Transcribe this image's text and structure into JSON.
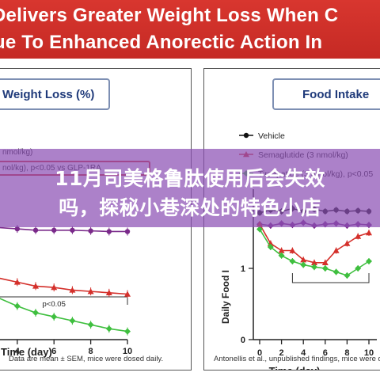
{
  "banner": {
    "line1": "Delivers Greater Weight Loss When C",
    "line2": "ue To Enhanced Anorectic Action In"
  },
  "overlay": {
    "line1": "11月司美格鲁肽使用后会失效",
    "line2": "吗，探秘小巷深处的特色小店"
  },
  "colors": {
    "banner_red": "#d32f2a",
    "vehicle": "#111111",
    "semaglutide": "#d4302b",
    "glp_series": "#7a2a8a",
    "tirzepatide": "#3fbf3f",
    "title_text": "#1f3a7a"
  },
  "chart_data": [
    {
      "type": "line",
      "title": "Weight Loss (%)",
      "xlabel": "Time (day)",
      "ylabel": "",
      "xlim": [
        0,
        10
      ],
      "xticks": [
        "4",
        "6",
        "8",
        "10"
      ],
      "legend": {
        "placement": "top",
        "entries": [
          "nmol/kg)",
          "nol/kg), p<0.05 vs GLP-1RA"
        ]
      },
      "annotation": "p<0.05",
      "footnote": "Data are mean ± SEM, mice were dosed daily.",
      "series": [
        {
          "color": "#7a2a8a",
          "x": [
            0,
            1,
            2,
            3,
            4,
            5,
            6,
            7,
            8,
            9,
            10
          ],
          "values": [
            -6.5,
            -7.2,
            -7.5,
            -7.7,
            -7.8,
            -7.9,
            -7.9,
            -7.9,
            -7.95,
            -8.0,
            -8.0
          ]
        },
        {
          "color": "#d4302b",
          "x": [
            0,
            1,
            2,
            3,
            4,
            5,
            6,
            7,
            8,
            9,
            10
          ],
          "values": [
            -10.0,
            -10.6,
            -11.1,
            -11.5,
            -11.8,
            -12.1,
            -12.2,
            -12.4,
            -12.5,
            -12.6,
            -12.7
          ]
        },
        {
          "color": "#3fbf3f",
          "x": [
            0,
            1,
            2,
            3,
            4,
            5,
            6,
            7,
            8,
            9,
            10
          ],
          "values": [
            -11.0,
            -11.8,
            -12.4,
            -13.0,
            -13.6,
            -14.1,
            -14.4,
            -14.7,
            -15.0,
            -15.3,
            -15.5
          ]
        }
      ]
    },
    {
      "type": "line",
      "title": "Food Intake",
      "xlabel": "Time (day)",
      "ylabel": "Daily Food I",
      "xlim": [
        0,
        10
      ],
      "ylim": [
        0,
        2
      ],
      "xticks": [
        "0",
        "2",
        "4",
        "6",
        "8",
        "10"
      ],
      "yticks": [
        "0",
        "1"
      ],
      "legend": {
        "placement": "top-left",
        "entries": [
          "Vehicle",
          "Semaglutide (3 nmol/kg)",
          "Tirzepatide (3 nmol/kg), p<0.05"
        ]
      },
      "footnote": "Antonellis et al., unpublished findings, mice were dosed d",
      "series": [
        {
          "name": "Vehicle",
          "color": "#111111",
          "x": [
            0,
            1,
            2,
            3,
            4,
            5,
            6,
            7,
            8,
            9,
            10
          ],
          "values": [
            1.78,
            1.82,
            1.8,
            1.84,
            1.8,
            1.83,
            1.8,
            1.82,
            1.8,
            1.81,
            1.8
          ]
        },
        {
          "name": "glp_series",
          "color": "#7a2a8a",
          "x": [
            0,
            1,
            2,
            3,
            4,
            5,
            6,
            7,
            8,
            9,
            10
          ],
          "values": [
            1.62,
            1.6,
            1.63,
            1.61,
            1.64,
            1.6,
            1.62,
            1.63,
            1.6,
            1.62,
            1.61
          ]
        },
        {
          "name": "Semaglutide (3 nmol/kg)",
          "color": "#d4302b",
          "x": [
            0,
            1,
            2,
            3,
            4,
            5,
            6,
            7,
            8,
            9,
            10
          ],
          "values": [
            1.62,
            1.35,
            1.25,
            1.25,
            1.12,
            1.08,
            1.08,
            1.25,
            1.35,
            1.45,
            1.5
          ]
        },
        {
          "name": "Tirzepatide (3 nmol/kg), p<0.05",
          "color": "#3fbf3f",
          "x": [
            0,
            1,
            2,
            3,
            4,
            5,
            6,
            7,
            8,
            9,
            10
          ],
          "values": [
            1.55,
            1.3,
            1.18,
            1.1,
            1.05,
            1.02,
            1.0,
            0.95,
            0.9,
            1.0,
            1.1
          ]
        }
      ]
    }
  ]
}
